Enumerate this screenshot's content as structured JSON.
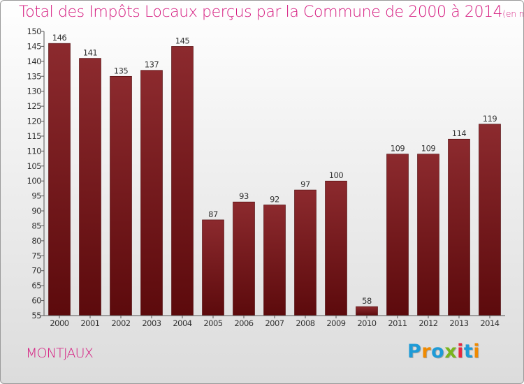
{
  "title": "Total des Impôts Locaux perçus par la Commune de 2000 à 2014",
  "title_unit": "(en milliers d'€)",
  "commune": "MONTJAUX",
  "logo": {
    "text": "Proxiti",
    "letters": [
      "P",
      "r",
      "o",
      "x",
      "i",
      "t",
      "i"
    ],
    "colors": [
      "#1e9bd7",
      "#f08a00",
      "#1e9bd7",
      "#7ab51d",
      "#e7263d",
      "#1e9bd7",
      "#f08a00"
    ]
  },
  "colors": {
    "bar_top": "#8c2a2e",
    "bar_bottom": "#5c0a0c",
    "title": "#d51a7f"
  },
  "chart_data": {
    "type": "bar",
    "title": "Total des Impôts Locaux perçus par la Commune de 2000 à 2014 (en milliers d'€)",
    "xlabel": "",
    "ylabel": "",
    "categories": [
      "2000",
      "2001",
      "2002",
      "2003",
      "2004",
      "2005",
      "2006",
      "2007",
      "2008",
      "2009",
      "2010",
      "2011",
      "2012",
      "2013",
      "2014"
    ],
    "values": [
      146,
      141,
      135,
      137,
      145,
      87,
      93,
      92,
      97,
      100,
      58,
      109,
      109,
      114,
      119
    ],
    "ylim": [
      55,
      150
    ],
    "yticks": [
      55,
      60,
      65,
      70,
      75,
      80,
      85,
      90,
      95,
      100,
      105,
      110,
      115,
      120,
      125,
      130,
      135,
      140,
      145,
      150
    ],
    "grid": false
  }
}
